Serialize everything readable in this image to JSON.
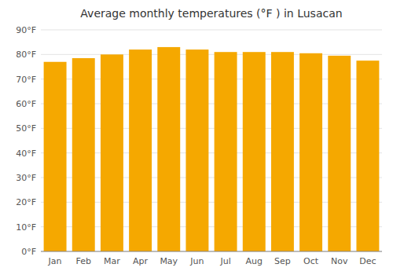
{
  "chart_data": {
    "type": "bar",
    "title": "Average monthly temperatures (°F ) in Lusacan",
    "categories": [
      "Jan",
      "Feb",
      "Mar",
      "Apr",
      "May",
      "Jun",
      "Jul",
      "Aug",
      "Sep",
      "Oct",
      "Nov",
      "Dec"
    ],
    "values": [
      77,
      78.5,
      80,
      82,
      83,
      82,
      81,
      81,
      81,
      80.5,
      79.5,
      77.5
    ],
    "color": "#F5A800",
    "ylim": [
      0,
      90
    ],
    "yticks": [
      {
        "value": 0,
        "label": "0°F"
      },
      {
        "value": 10,
        "label": "10°F"
      },
      {
        "value": 20,
        "label": "20°F"
      },
      {
        "value": 30,
        "label": "30°F"
      },
      {
        "value": 40,
        "label": "40°F"
      },
      {
        "value": 50,
        "label": "50°F"
      },
      {
        "value": 60,
        "label": "60°F"
      },
      {
        "value": 70,
        "label": "70°F"
      },
      {
        "value": 80,
        "label": "80°F"
      },
      {
        "value": 90,
        "label": "90°F"
      }
    ],
    "grid": true
  }
}
